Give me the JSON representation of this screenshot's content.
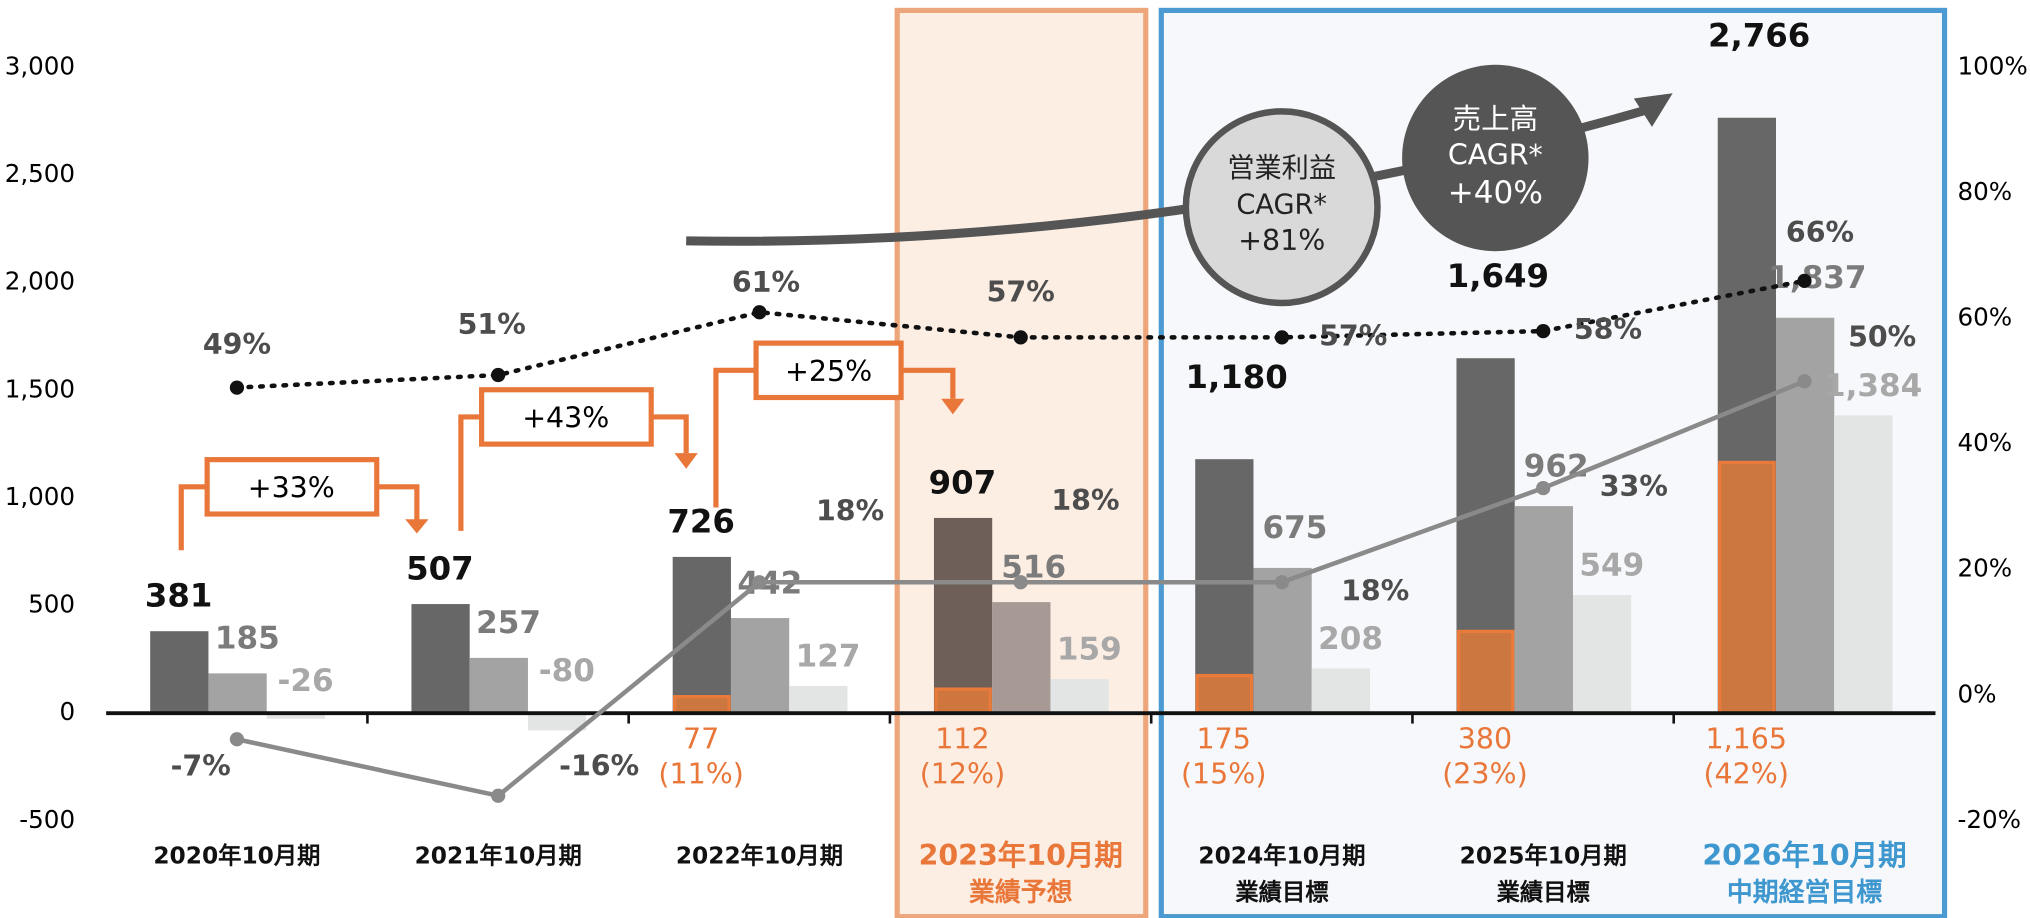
{
  "chart_data": {
    "type": "bar",
    "categories": [
      "2020年10月期",
      "2021年10月期",
      "2022年10月期",
      "2023年10月期",
      "2024年10月期",
      "2025年10月期",
      "2026年10月期"
    ],
    "category_notes": [
      null,
      null,
      null,
      "業績予想",
      "業績目標",
      "業績目標",
      "中期経営目標"
    ],
    "series": [
      {
        "type": "bar",
        "role": "dark",
        "color": "#676767",
        "values": [
          381,
          507,
          726,
          907,
          1180,
          1649,
          2766
        ],
        "value_labels": [
          "381",
          "507",
          "726",
          "907",
          "1,180",
          "1,649",
          "2,766"
        ]
      },
      {
        "type": "bar",
        "role": "mid",
        "color": "#a3a3a3",
        "values": [
          185,
          257,
          442,
          516,
          675,
          962,
          1837
        ],
        "value_labels": [
          "185",
          "257",
          "442",
          "516",
          "675",
          "962",
          "1,837"
        ]
      },
      {
        "type": "bar",
        "role": "light",
        "color": "#e3e5e5",
        "values": [
          -26,
          -80,
          127,
          159,
          208,
          549,
          1384
        ],
        "value_labels": [
          "-26",
          "-80",
          "127",
          "159",
          "208",
          "549",
          "1,384"
        ]
      },
      {
        "type": "bar",
        "role": "overlay",
        "color": "#df7a3a",
        "values": [
          null,
          null,
          77,
          112,
          175,
          380,
          1165
        ],
        "value_labels": [
          null,
          null,
          "77",
          "112",
          "175",
          "380",
          "1,165"
        ]
      },
      {
        "type": "line",
        "style": "dotted",
        "axis": "y2",
        "color": "#111111",
        "values": [
          49,
          51,
          61,
          57,
          57,
          58,
          66
        ],
        "value_labels": [
          "49%",
          "51%",
          "61%",
          "57%",
          "57%",
          "58%",
          "66%"
        ]
      },
      {
        "type": "line",
        "style": "solid",
        "axis": "y2",
        "color": "#8a8a8a",
        "values": [
          -7,
          -16,
          18,
          18,
          18,
          33,
          50
        ],
        "value_labels": [
          "-7%",
          "-16%",
          "18%",
          "18%",
          "18%",
          "33%",
          "50%"
        ]
      }
    ],
    "margin": {
      "values": [
        null,
        null,
        11,
        12,
        15,
        23,
        42
      ],
      "value_labels": [
        null,
        null,
        "(11%)",
        "(12%)",
        "(15%)",
        "(23%)",
        "(42%)"
      ]
    },
    "growth": [
      "+33%",
      "+43%",
      "+25%"
    ],
    "cagr": [
      [
        "営業利益",
        "CAGR*",
        "+81%"
      ],
      [
        "売上高",
        "CAGR*",
        "+40%"
      ]
    ],
    "ylim": [
      -500,
      3000
    ],
    "yticks": [
      -500,
      0,
      500,
      {
        "value": 1000,
        "label": "1,000"
      },
      {
        "value": 1500,
        "label": "1,500"
      },
      {
        "value": 2000,
        "label": "2,000"
      },
      {
        "value": 2500,
        "label": "2,500"
      },
      {
        "value": 3000,
        "label": "3,000"
      }
    ],
    "y2lim": [
      -20,
      100
    ],
    "y2ticks": [
      {
        "value": -20,
        "label": "-20%"
      },
      {
        "value": 0,
        "label": "0%"
      },
      {
        "value": 20,
        "label": "20%"
      },
      {
        "value": 40,
        "label": "40%"
      },
      {
        "value": 60,
        "label": "60%"
      },
      {
        "value": 80,
        "label": "80%"
      },
      {
        "value": 100,
        "label": "100%"
      }
    ]
  }
}
